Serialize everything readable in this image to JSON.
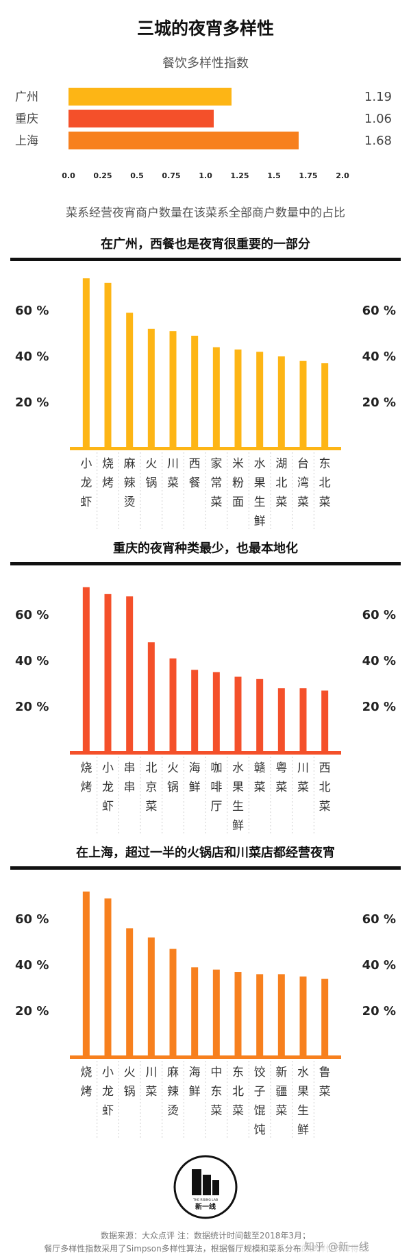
{
  "header": {
    "title": "三城的夜宵多样性",
    "subtitle": "餐饮多样性指数",
    "caption": "菜系经营夜宵商户数量在该菜系全部商户数量中的占比"
  },
  "chart_data": [
    {
      "type": "bar",
      "orientation": "horizontal",
      "title": "餐饮多样性指数",
      "categories": [
        "广州",
        "重庆",
        "上海"
      ],
      "values": [
        1.19,
        1.06,
        1.68
      ],
      "value_labels": [
        "1.19",
        "1.06",
        "1.68"
      ],
      "colors": [
        "#FDB515",
        "#F4502A",
        "#F7801E"
      ],
      "xlim": [
        0,
        2.0
      ],
      "xticks": [
        "0.0",
        "0.25",
        "0.5",
        "0.75",
        "1.0",
        "1.25",
        "1.5",
        "1.75",
        "2.0"
      ]
    },
    {
      "type": "bar",
      "title": "在广州，西餐也是夜宵很重要的一部分",
      "color": "#FDB515",
      "categories": [
        "小龙虾",
        "烧烤",
        "麻辣烫",
        "火锅",
        "川菜",
        "西餐",
        "家常菜",
        "米粉面",
        "水果生鲜",
        "湖北菜",
        "台湾菜",
        "东北菜"
      ],
      "values": [
        74,
        72,
        59,
        52,
        51,
        49,
        44,
        43,
        42,
        40,
        38,
        37
      ],
      "unit": "%",
      "ylim": [
        0,
        80
      ],
      "yticks": [
        "20 %",
        "40 %",
        "60 %"
      ]
    },
    {
      "type": "bar",
      "title": "重庆的夜宵种类最少，也最本地化",
      "color": "#F4502A",
      "categories": [
        "烧烤",
        "小龙虾",
        "串串",
        "北京菜",
        "火锅",
        "海鲜",
        "咖啡厅",
        "水果生鲜",
        "赣菜",
        "粤菜",
        "川菜",
        "西北菜"
      ],
      "values": [
        72,
        69,
        68,
        48,
        41,
        36,
        35,
        33,
        32,
        28,
        28,
        27
      ],
      "unit": "%",
      "ylim": [
        0,
        80
      ],
      "yticks": [
        "20 %",
        "40 %",
        "60 %"
      ]
    },
    {
      "type": "bar",
      "title": "在上海，超过一半的火锅店和川菜店都经营夜宵",
      "color": "#F7801E",
      "categories": [
        "烧烤",
        "小龙虾",
        "火锅",
        "川菜",
        "麻辣烫",
        "海鲜",
        "中东菜",
        "东北菜",
        "饺子馄饨",
        "新疆菜",
        "水果生鲜",
        "鲁菜"
      ],
      "values": [
        72,
        69,
        56,
        52,
        47,
        39,
        38,
        37,
        36,
        36,
        35,
        34
      ],
      "unit": "%",
      "ylim": [
        0,
        80
      ],
      "yticks": [
        "20 %",
        "40 %",
        "60 %"
      ]
    }
  ],
  "logo": {
    "name": "新一线",
    "small_text": "THE RISING LAB"
  },
  "footer": {
    "line1": "数据来源：大众点评    注：数据统计时间截至2018年3月；",
    "line2": "餐厅多样性指数采用了Simpson多样性算法，根据餐厅规模和菜系分布的多样性计算得出",
    "watermark": "知乎 @新一线"
  },
  "colors": {
    "guangzhou": "#FDB515",
    "chongqing": "#F4502A",
    "shanghai": "#F7801E",
    "rule": "#111111"
  }
}
